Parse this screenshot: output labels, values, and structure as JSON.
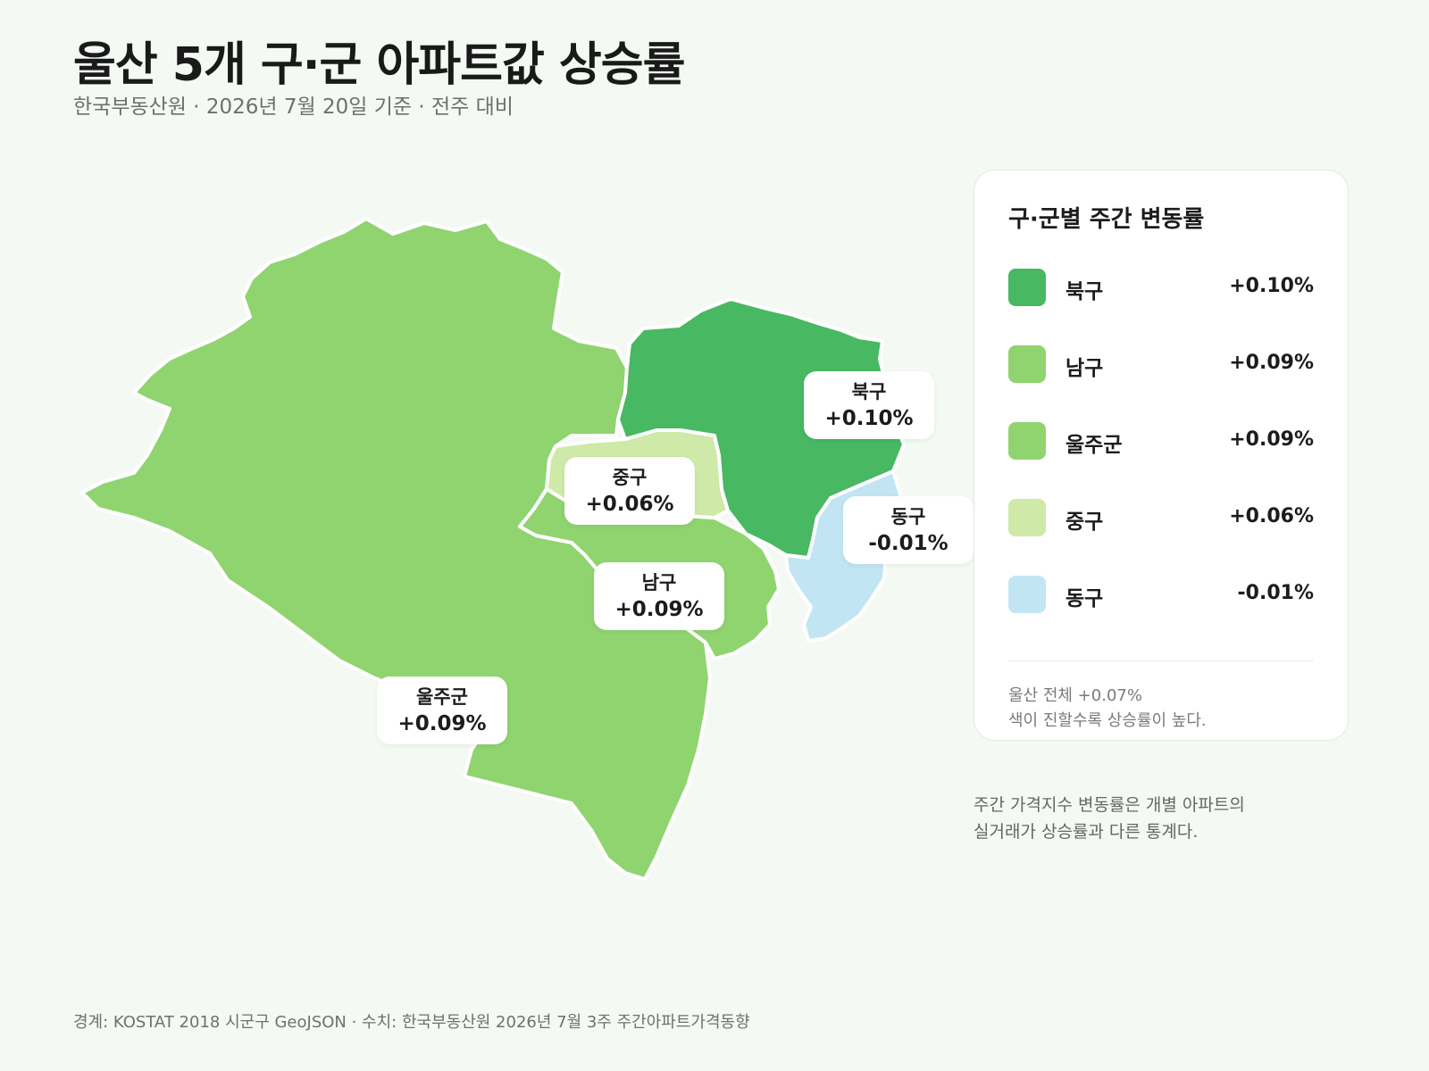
{
  "header": {
    "title": "울산 5개 구·군 아파트값 상승률",
    "subtitle": "한국부동산원 · 2026년 7월 20일 기준 · 전주 대비"
  },
  "colors": {
    "background": "#f4f9f3",
    "buk_gu": "#48b862",
    "nam_gu": "#8fd46f",
    "ulju_gun": "#8fd46f",
    "jung_gu": "#cfe9a8",
    "dong_gu": "#c2e5f4"
  },
  "map": {
    "labels": {
      "buk": {
        "name": "북구",
        "value": "+0.10%"
      },
      "jung": {
        "name": "중구",
        "value": "+0.06%"
      },
      "dong": {
        "name": "동구",
        "value": "-0.01%"
      },
      "nam": {
        "name": "남구",
        "value": "+0.09%"
      },
      "ulju": {
        "name": "울주군",
        "value": "+0.09%"
      }
    }
  },
  "legend": {
    "title": "구·군별 주간 변동률",
    "items": [
      {
        "name": "북구",
        "value": "+0.10%",
        "color": "#48b862"
      },
      {
        "name": "남구",
        "value": "+0.09%",
        "color": "#8fd46f"
      },
      {
        "name": "울주군",
        "value": "+0.09%",
        "color": "#8fd46f"
      },
      {
        "name": "중구",
        "value": "+0.06%",
        "color": "#cfe9a8"
      },
      {
        "name": "동구",
        "value": "-0.01%",
        "color": "#c2e5f4"
      }
    ],
    "note_total": "울산 전체 +0.07%",
    "note_scale": "색이 진할수록 상승률이 높다."
  },
  "side_note": {
    "line1": "주간 가격지수 변동률은 개별 아파트의",
    "line2": "실거래가 상승률과 다른 통계다."
  },
  "footer": "경계: KOSTAT 2018 시군구 GeoJSON · 수치: 한국부동산원 2026년 7월 3주 주간아파트가격동향"
}
